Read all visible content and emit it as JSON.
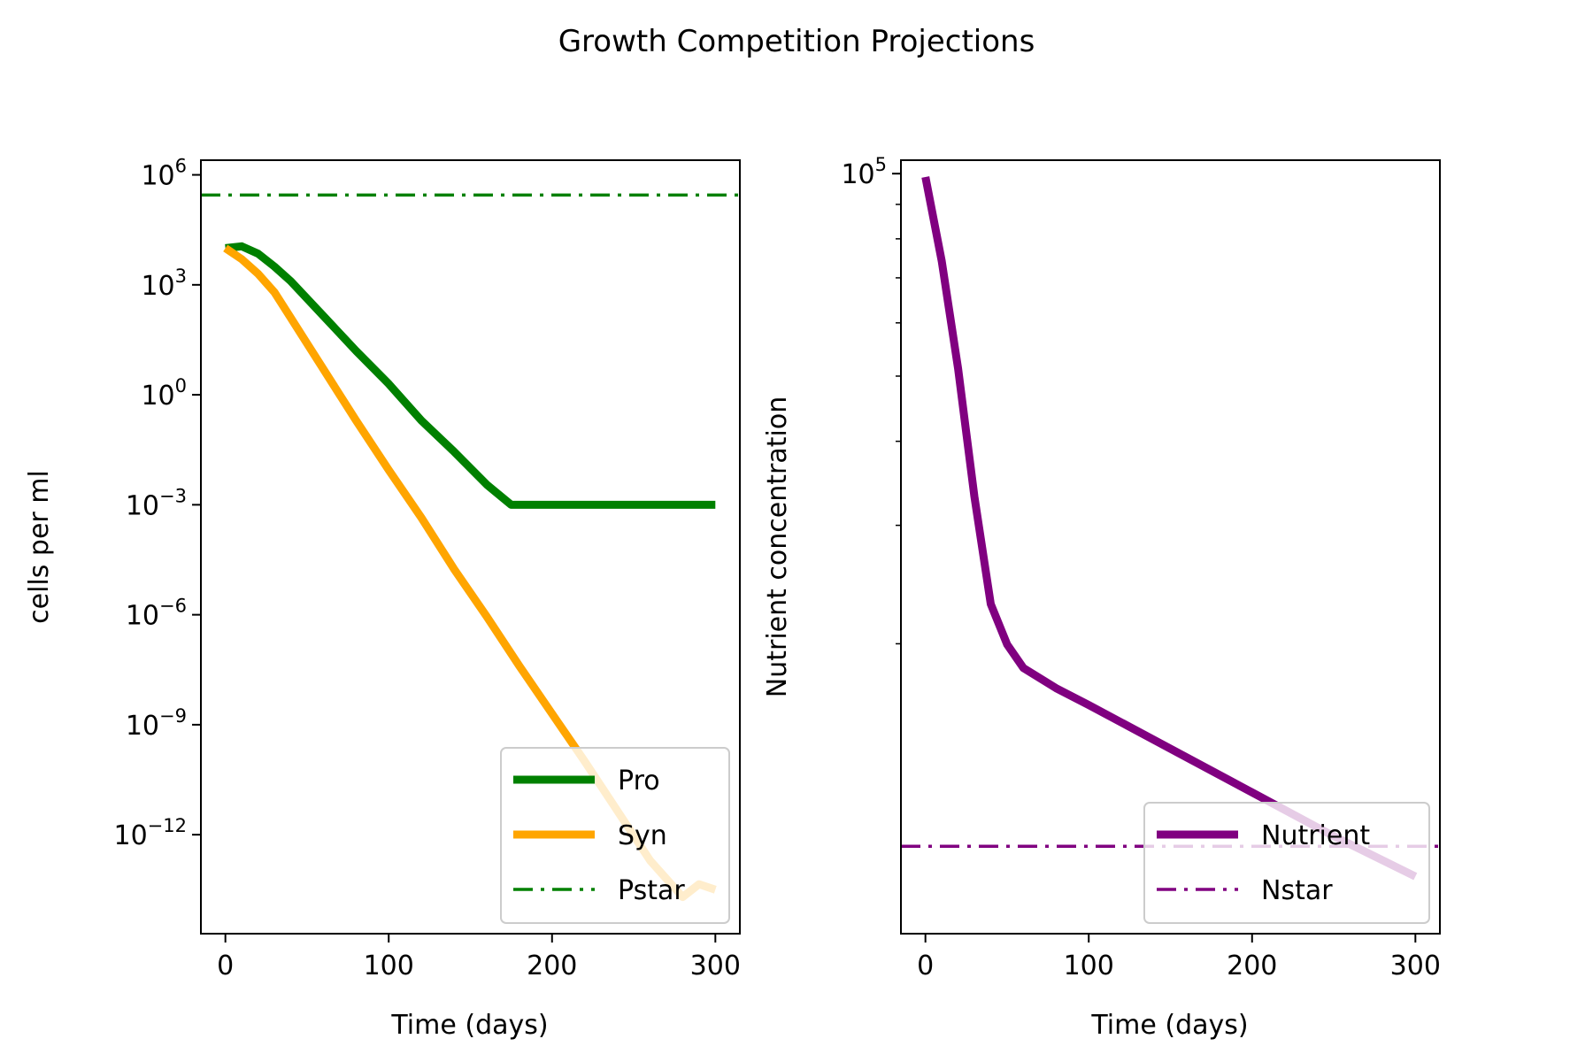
{
  "figure": {
    "title": "Growth Competition Projections"
  },
  "chart_data": [
    {
      "type": "line",
      "xlabel": "Time (days)",
      "ylabel": "cells per ml",
      "xlim": [
        -15,
        315
      ],
      "ylim_log10": [
        -14.7,
        6.4
      ],
      "y_scale": "log",
      "x_ticks": [
        0,
        100,
        200,
        300
      ],
      "y_tick_exponents": [
        6,
        3,
        0,
        -3,
        -6,
        -9,
        -12
      ],
      "legend_position": "lower-right",
      "series": [
        {
          "name": "Pro",
          "color": "#008000",
          "style": "solid",
          "x": [
            0,
            10,
            20,
            30,
            40,
            60,
            80,
            100,
            120,
            140,
            160,
            175,
            200,
            250,
            300
          ],
          "log10_y": [
            4.0,
            4.05,
            3.85,
            3.5,
            3.1,
            2.15,
            1.2,
            0.3,
            -0.7,
            -1.55,
            -2.45,
            -3.0,
            -3.0,
            -3.0,
            -3.0
          ]
        },
        {
          "name": "Syn",
          "color": "#FFA500",
          "style": "solid",
          "x": [
            0,
            10,
            20,
            30,
            40,
            60,
            80,
            100,
            120,
            140,
            160,
            180,
            200,
            220,
            240,
            260,
            280,
            290,
            300
          ],
          "log10_y": [
            4.0,
            3.7,
            3.3,
            2.8,
            2.1,
            0.7,
            -0.7,
            -2.05,
            -3.35,
            -4.75,
            -6.05,
            -7.4,
            -8.7,
            -10.0,
            -11.35,
            -12.7,
            -13.7,
            -13.35,
            -13.5
          ]
        },
        {
          "name": "Pstar",
          "color": "#008000",
          "style": "dashdot",
          "x": [
            -15,
            315
          ],
          "log10_y": [
            5.45,
            5.45
          ]
        }
      ]
    },
    {
      "type": "line",
      "xlabel": "Time (days)",
      "ylabel": "Nutrient concentration",
      "xlim": [
        -15,
        315
      ],
      "y_scale": "log",
      "x_ticks": [
        0,
        100,
        200,
        300
      ],
      "y_tick_exponents": [
        5
      ],
      "legend_position": "lower-right",
      "series": [
        {
          "name": "Nutrient",
          "color": "#800080",
          "style": "solid",
          "x": [
            0,
            10,
            20,
            30,
            40,
            50,
            60,
            80,
            100,
            150,
            200,
            250,
            300
          ],
          "log10_y": [
            4.995,
            4.87,
            4.71,
            4.52,
            4.36,
            4.3,
            4.265,
            4.235,
            4.21,
            4.145,
            4.08,
            4.015,
            3.955
          ]
        },
        {
          "name": "Nstar",
          "color": "#800080",
          "style": "dashdot",
          "x": [
            -15,
            315
          ],
          "log10_y": [
            4.0,
            4.0
          ]
        }
      ]
    }
  ]
}
